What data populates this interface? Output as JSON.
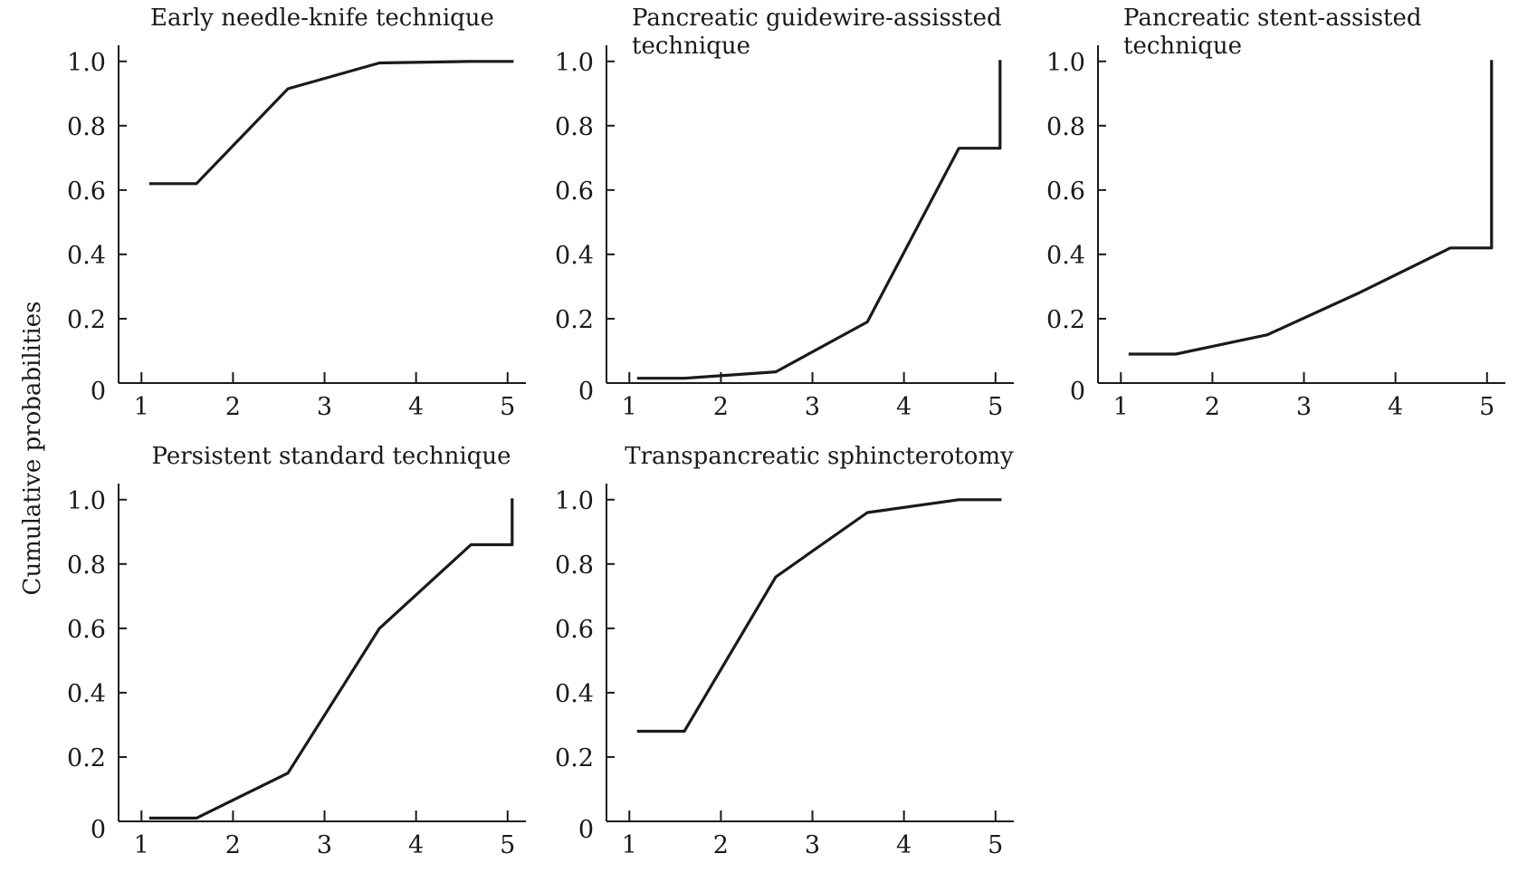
{
  "figure": {
    "ylabel": "Cumulative probabilities"
  },
  "chart_data": [
    {
      "type": "line",
      "title": [
        "Early needle-knife technique"
      ],
      "x": [
        1.1,
        1.6,
        2.6,
        3.6,
        4.6,
        5.05
      ],
      "values": [
        0.62,
        0.62,
        0.915,
        0.995,
        1.0,
        1.0
      ],
      "xlim": [
        0.75,
        5.2
      ],
      "ylim": [
        0,
        1.05
      ],
      "xticks": [
        "1",
        "2",
        "3",
        "4",
        "5"
      ],
      "yticks": [
        "0",
        "0.2",
        "0.4",
        "0.6",
        "0.8",
        "1.0"
      ]
    },
    {
      "type": "line",
      "title": [
        "Pancreatic guidewire-assissted",
        "technique"
      ],
      "x": [
        1.1,
        1.6,
        2.6,
        3.6,
        4.6,
        5.05,
        5.05
      ],
      "values": [
        0.015,
        0.015,
        0.035,
        0.19,
        0.73,
        0.73,
        1.0
      ],
      "xlim": [
        0.75,
        5.2
      ],
      "ylim": [
        0,
        1.05
      ],
      "xticks": [
        "1",
        "2",
        "3",
        "4",
        "5"
      ],
      "yticks": [
        "0",
        "0.2",
        "0.4",
        "0.6",
        "0.8",
        "1.0"
      ]
    },
    {
      "type": "line",
      "title": [
        "Pancreatic stent-assisted",
        "technique"
      ],
      "x": [
        1.1,
        1.6,
        2.6,
        3.6,
        4.6,
        5.05,
        5.05
      ],
      "values": [
        0.09,
        0.09,
        0.15,
        0.28,
        0.42,
        0.42,
        1.0
      ],
      "xlim": [
        0.75,
        5.2
      ],
      "ylim": [
        0,
        1.05
      ],
      "xticks": [
        "1",
        "2",
        "3",
        "4",
        "5"
      ],
      "yticks": [
        "0",
        "0.2",
        "0.4",
        "0.6",
        "0.8",
        "1.0"
      ]
    },
    {
      "type": "line",
      "title": [
        "Persistent standard technique"
      ],
      "x": [
        1.1,
        1.6,
        2.6,
        3.6,
        4.6,
        5.05,
        5.05
      ],
      "values": [
        0.01,
        0.01,
        0.15,
        0.6,
        0.86,
        0.86,
        1.0
      ],
      "xlim": [
        0.75,
        5.2
      ],
      "ylim": [
        0,
        1.05
      ],
      "xticks": [
        "1",
        "2",
        "3",
        "4",
        "5"
      ],
      "yticks": [
        "0",
        "0.2",
        "0.4",
        "0.6",
        "0.8",
        "1.0"
      ]
    },
    {
      "type": "line",
      "title": [
        "Transpancreatic sphincterotomy"
      ],
      "x": [
        1.1,
        1.6,
        2.6,
        3.6,
        4.6,
        5.05
      ],
      "values": [
        0.28,
        0.28,
        0.76,
        0.96,
        1.0,
        1.0
      ],
      "xlim": [
        0.75,
        5.2
      ],
      "ylim": [
        0,
        1.05
      ],
      "xticks": [
        "1",
        "2",
        "3",
        "4",
        "5"
      ],
      "yticks": [
        "0",
        "0.2",
        "0.4",
        "0.6",
        "0.8",
        "1.0"
      ]
    }
  ]
}
